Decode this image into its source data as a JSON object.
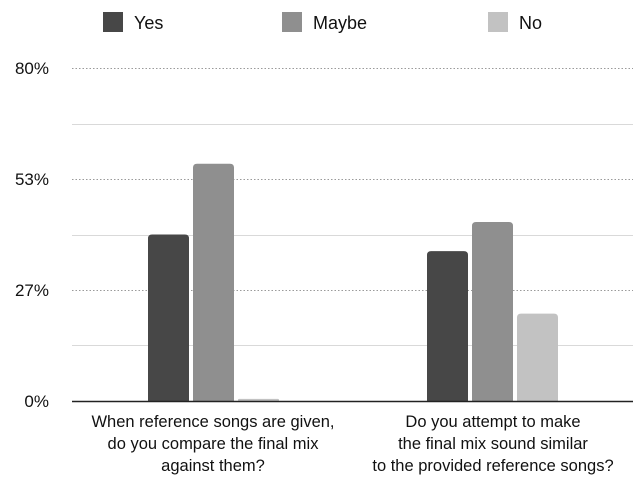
{
  "chart_data": {
    "type": "bar",
    "categories": [
      [
        "When reference songs are given,",
        "do you compare the final mix",
        "against them?"
      ],
      [
        "Do you attempt to make",
        "the final mix sound similar",
        "to the provided reference songs?"
      ]
    ],
    "series": [
      {
        "name": "Yes",
        "color": "#474747",
        "values": [
          40,
          36
        ]
      },
      {
        "name": "Maybe",
        "color": "#8f8f8f",
        "values": [
          57,
          43
        ]
      },
      {
        "name": "No",
        "color": "#c2c2c2",
        "values": [
          0.5,
          21
        ]
      }
    ],
    "y_ticks": [
      "0%",
      "27%",
      "53%",
      "80%"
    ],
    "y_tick_values": [
      0,
      26.67,
      53.33,
      80
    ],
    "ylim": [
      0,
      80
    ],
    "grid": true,
    "legend_position": "top",
    "title": "",
    "xlabel": "",
    "ylabel": ""
  }
}
